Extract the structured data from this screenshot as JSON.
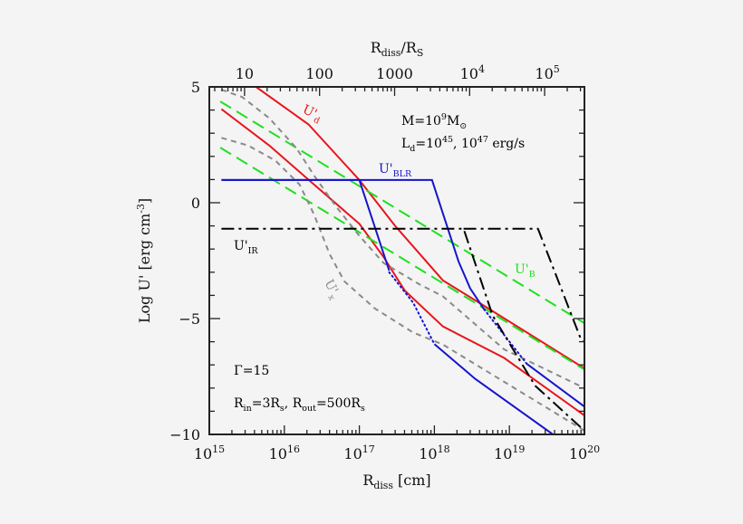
{
  "chart_data": {
    "type": "line",
    "x_scale": "log",
    "xlim": [
      1000000000000000.0,
      1e+20
    ],
    "ylim": [
      -10,
      5
    ],
    "grid": false,
    "xlabel": [
      {
        "t": "R"
      },
      {
        "t": "diss",
        "s": "sub"
      },
      {
        "t": " [cm]"
      }
    ],
    "ylabel": [
      {
        "t": "Log U' [erg cm"
      },
      {
        "t": "-3",
        "s": "sup"
      },
      {
        "t": "]"
      }
    ],
    "x_ticks": [
      {
        "value": 1000000000000000.0,
        "base": "10",
        "exp": "15"
      },
      {
        "value": 1e+16,
        "base": "10",
        "exp": "16"
      },
      {
        "value": 1e+17,
        "base": "10",
        "exp": "17"
      },
      {
        "value": 1e+18,
        "base": "10",
        "exp": "18"
      },
      {
        "value": 1e+19,
        "base": "10",
        "exp": "19"
      },
      {
        "value": 1e+20,
        "base": "10",
        "exp": "20"
      }
    ],
    "y_ticks": [
      {
        "value": 5,
        "label": "5"
      },
      {
        "value": 0,
        "label": "0"
      },
      {
        "value": -5,
        "label": "−5"
      },
      {
        "value": -10,
        "label": "−10"
      }
    ],
    "top_axis": {
      "label": [
        {
          "t": "R"
        },
        {
          "t": "diss",
          "s": "sub"
        },
        {
          "t": "/R"
        },
        {
          "t": "S",
          "s": "sub"
        }
      ],
      "ticks": [
        {
          "value": 10,
          "base": "10",
          "exp": ""
        },
        {
          "value": 100,
          "base": "100",
          "exp": ""
        },
        {
          "value": 1000,
          "base": "1000",
          "exp": ""
        },
        {
          "value": 10000,
          "base": "10",
          "exp": "4"
        },
        {
          "value": 100000,
          "base": "10",
          "exp": "5"
        }
      ]
    },
    "colors": {
      "red": "#e8151b",
      "green": "#1fe01f",
      "blue": "#1515cc",
      "gray": "#8a8a8a",
      "black": "#000000"
    },
    "series": [
      {
        "id": "U_d_high",
        "color": "red",
        "style": "solid",
        "segments": [
          {
            "style": "solid",
            "points": [
              [
                4200000000000000.0,
                5.0
              ],
              [
                2.1e+16,
                3.38
              ],
              [
                1e+17,
                0.98
              ],
              [
                3e+17,
                -1.0
              ],
              [
                1.3e+18,
                -3.35
              ],
              [
                4.2e+18,
                -4.37
              ],
              [
                1e+20,
                -7.15
              ]
            ]
          }
        ]
      },
      {
        "id": "U_d_low",
        "color": "red",
        "segments": [
          {
            "style": "solid",
            "points": [
              [
                1450000000000000.0,
                4.04
              ],
              [
                6300000000000000.0,
                2.47
              ],
              [
                2.5e+16,
                0.78
              ],
              [
                1e+17,
                -0.91
              ],
              [
                2.1e+17,
                -2.34
              ],
              [
                4e+17,
                -3.78
              ],
              [
                1.3e+18,
                -5.34
              ],
              [
                8.5e+18,
                -6.7
              ],
              [
                1e+20,
                -9.18
              ]
            ]
          }
        ]
      },
      {
        "id": "U_B_high",
        "color": "green",
        "segments": [
          {
            "style": "longdash",
            "points": [
              [
                1400000000000000.0,
                4.37
              ],
              [
                1e+20,
                -5.2
              ]
            ]
          }
        ]
      },
      {
        "id": "U_B_low",
        "color": "green",
        "segments": [
          {
            "style": "longdash",
            "points": [
              [
                1400000000000000.0,
                2.38
              ],
              [
                1e+20,
                -7.2
              ]
            ]
          }
        ]
      },
      {
        "id": "U_x_high",
        "color": "gray",
        "segments": [
          {
            "style": "dash",
            "points": [
              [
                1450000000000000.0,
                4.88
              ],
              [
                2750000000000000.0,
                4.56
              ],
              [
                6300000000000000.0,
                3.65
              ],
              [
                1.45e+16,
                2.35
              ],
              [
                2.5e+16,
                1.17
              ],
              [
                4.8e+16,
                -0.13
              ],
              [
                1e+17,
                -1.43
              ],
              [
                2.1e+17,
                -2.6
              ],
              [
                6.3e+17,
                -3.52
              ],
              [
                1.3e+18,
                -4.04
              ],
              [
                8.5e+18,
                -6.33
              ],
              [
                1e+20,
                -8.0
              ]
            ]
          }
        ]
      },
      {
        "id": "U_x_low",
        "color": "gray",
        "segments": [
          {
            "style": "dash",
            "points": [
              [
                1450000000000000.0,
                2.8
              ],
              [
                3300000000000000.0,
                2.47
              ],
              [
                7600000000000000.0,
                1.82
              ],
              [
                1.6e+16,
                0.78
              ],
              [
                2.5e+16,
                -0.52
              ],
              [
                4e+16,
                -2.21
              ],
              [
                6.3e+16,
                -3.39
              ],
              [
                1.6e+17,
                -4.56
              ],
              [
                5.2e+17,
                -5.6
              ],
              [
                1.3e+18,
                -6.12
              ],
              [
                8.5e+18,
                -7.73
              ],
              [
                1e+20,
                -9.84
              ]
            ]
          }
        ]
      },
      {
        "id": "U_BLR_low",
        "color": "blue",
        "segments": [
          {
            "style": "solid",
            "points": [
              [
                1450000000000000.0,
                0.98
              ],
              [
                1e+17,
                0.98
              ],
              [
                2.5e+17,
                -2.93
              ]
            ]
          },
          {
            "style": "dot",
            "points": [
              [
                2.5e+17,
                -3.0
              ],
              [
                5.2e+17,
                -4.31
              ],
              [
                1e+18,
                -6.1
              ]
            ]
          },
          {
            "style": "solid",
            "points": [
              [
                1e+18,
                -6.1
              ],
              [
                3.5e+18,
                -7.6
              ],
              [
                3.8e+19,
                -10
              ]
            ]
          }
        ]
      },
      {
        "id": "U_BLR_high",
        "color": "blue",
        "segments": [
          {
            "style": "solid",
            "points": [
              [
                1450000000000000.0,
                0.98
              ],
              [
                9.3e+17,
                0.98
              ],
              [
                2.1e+18,
                -2.54
              ],
              [
                3e+18,
                -3.7
              ],
              [
                4.6e+18,
                -4.6
              ]
            ]
          },
          {
            "style": "dot",
            "points": [
              [
                4.6e+18,
                -4.6
              ],
              [
                1.7e+19,
                -6.95
              ]
            ]
          },
          {
            "style": "solid",
            "points": [
              [
                1.7e+19,
                -6.95
              ],
              [
                1e+20,
                -8.8
              ]
            ]
          }
        ]
      },
      {
        "id": "U_IR_low",
        "color": "black",
        "segments": [
          {
            "style": "dashdot",
            "points": [
              [
                1450000000000000.0,
                -1.12
              ],
              [
                2.45e+18,
                -1.12
              ],
              [
                6e+18,
                -4.88
              ],
              [
                2.2e+19,
                -7.9
              ],
              [
                1e+20,
                -9.84
              ]
            ]
          }
        ]
      },
      {
        "id": "U_IR_high",
        "color": "black",
        "segments": [
          {
            "style": "dashdot",
            "points": [
              [
                2.45e+18,
                -1.12
              ],
              [
                2.4e+19,
                -1.12
              ],
              [
                9e+19,
                -5.9
              ],
              [
                1e+20,
                -6.0
              ]
            ]
          }
        ]
      }
    ],
    "annotations": [
      {
        "id": "label-u-d",
        "color": "red",
        "parts": [
          {
            "t": "U'"
          },
          {
            "t": "d",
            "s": "sub"
          }
        ]
      },
      {
        "id": "label-mass",
        "color": "black",
        "parts": [
          {
            "t": "M=10"
          },
          {
            "t": "9",
            "s": "sup"
          },
          {
            "t": "M"
          },
          {
            "t": "⊙",
            "s": "sub"
          }
        ]
      },
      {
        "id": "label-ld",
        "color": "black",
        "parts": [
          {
            "t": "L"
          },
          {
            "t": "d",
            "s": "sub"
          },
          {
            "t": "=10"
          },
          {
            "t": "45",
            "s": "sup"
          },
          {
            "t": ",  10"
          },
          {
            "t": "47",
            "s": "sup"
          },
          {
            "t": " erg/s"
          }
        ]
      },
      {
        "id": "label-u-blr",
        "color": "blue",
        "parts": [
          {
            "t": "U'"
          },
          {
            "t": "BLR",
            "s": "sub"
          }
        ]
      },
      {
        "id": "label-u-ir",
        "color": "black",
        "parts": [
          {
            "t": "U'"
          },
          {
            "t": "IR",
            "s": "sub"
          }
        ]
      },
      {
        "id": "label-u-b",
        "color": "green",
        "parts": [
          {
            "t": "U'"
          },
          {
            "t": "B",
            "s": "sub"
          }
        ]
      },
      {
        "id": "label-u-x",
        "color": "gray",
        "parts": [
          {
            "t": "U'"
          },
          {
            "t": "x",
            "s": "sub"
          }
        ]
      },
      {
        "id": "label-gamma",
        "color": "black",
        "parts": [
          {
            "t": "Γ=15"
          }
        ]
      },
      {
        "id": "label-radii",
        "color": "black",
        "parts": [
          {
            "t": "R"
          },
          {
            "t": "in",
            "s": "sub"
          },
          {
            "t": "=3R"
          },
          {
            "t": "s",
            "s": "sub"
          },
          {
            "t": ",  R"
          },
          {
            "t": "out",
            "s": "sub"
          },
          {
            "t": "=500R"
          },
          {
            "t": "s",
            "s": "sub"
          }
        ]
      }
    ]
  }
}
